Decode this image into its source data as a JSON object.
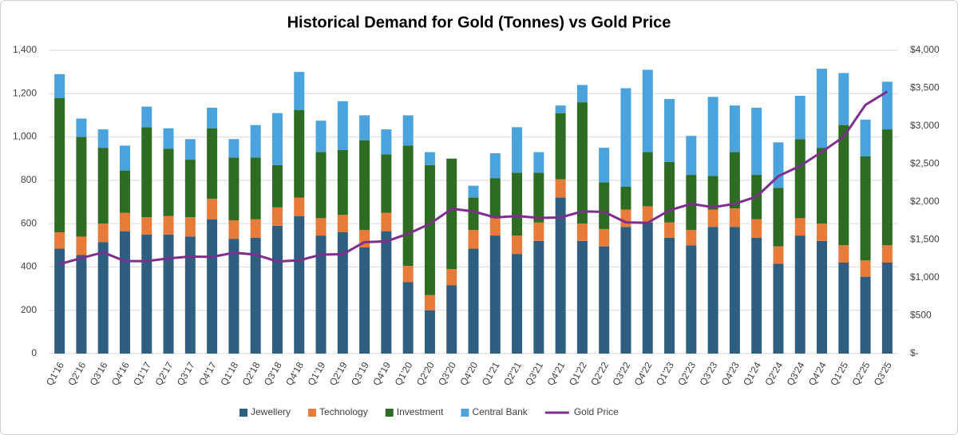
{
  "chart_data": {
    "type": "bar",
    "stacked": true,
    "title": "Historical Demand for Gold (Tonnes) vs Gold Price",
    "categories": [
      "Q1'16",
      "Q2'16",
      "Q3'16",
      "Q4'16",
      "Q1'17",
      "Q2'17",
      "Q3'17",
      "Q4'17",
      "Q1'18",
      "Q2'18",
      "Q3'18",
      "Q4'18",
      "Q1'19",
      "Q2'19",
      "Q3'19",
      "Q4'19",
      "Q1'20",
      "Q2'20",
      "Q3'20",
      "Q4'20",
      "Q1'21",
      "Q2'21",
      "Q3'21",
      "Q4'21",
      "Q1'22",
      "Q2'22",
      "Q3'22",
      "Q4'22",
      "Q1'23",
      "Q2'23",
      "Q3'23",
      "Q4'23",
      "Q1'24",
      "Q2'24",
      "Q3'24",
      "Q4'24",
      "Q1'25",
      "Q2'25",
      "Q3'25"
    ],
    "series": [
      {
        "name": "Jewellery",
        "color": "#2f5f80",
        "values": [
          485,
          455,
          515,
          565,
          550,
          550,
          540,
          620,
          530,
          535,
          590,
          635,
          545,
          560,
          490,
          565,
          330,
          200,
          315,
          485,
          545,
          460,
          520,
          720,
          520,
          495,
          585,
          605,
          535,
          500,
          585,
          585,
          535,
          415,
          545,
          520,
          420,
          355,
          420
        ]
      },
      {
        "name": "Technology",
        "color": "#e97b3a",
        "values": [
          75,
          85,
          85,
          85,
          80,
          85,
          90,
          95,
          85,
          85,
          85,
          85,
          80,
          80,
          80,
          85,
          75,
          70,
          75,
          85,
          80,
          85,
          85,
          85,
          80,
          80,
          80,
          75,
          70,
          70,
          80,
          85,
          85,
          80,
          80,
          80,
          80,
          75,
          80
        ]
      },
      {
        "name": "Investment",
        "color": "#2e6b23",
        "values": [
          620,
          460,
          350,
          195,
          415,
          310,
          265,
          325,
          290,
          285,
          195,
          405,
          305,
          300,
          415,
          270,
          555,
          600,
          510,
          150,
          185,
          290,
          230,
          305,
          560,
          215,
          105,
          250,
          280,
          255,
          155,
          260,
          205,
          270,
          365,
          350,
          555,
          480,
          535
        ]
      },
      {
        "name": "Central Bank",
        "color": "#4aa3dc",
        "values": [
          110,
          85,
          85,
          115,
          95,
          95,
          95,
          95,
          85,
          150,
          240,
          175,
          145,
          225,
          115,
          115,
          140,
          60,
          0,
          55,
          115,
          210,
          95,
          35,
          80,
          160,
          455,
          380,
          290,
          180,
          365,
          215,
          310,
          210,
          200,
          365,
          240,
          170,
          220
        ]
      },
      {
        "name": "Gold Price",
        "color": "#7e2f8e",
        "type": "line",
        "axis": "y2",
        "values": [
          1180,
          1260,
          1335,
          1220,
          1220,
          1255,
          1280,
          1275,
          1330,
          1305,
          1215,
          1230,
          1305,
          1310,
          1470,
          1480,
          1580,
          1710,
          1910,
          1875,
          1795,
          1815,
          1790,
          1795,
          1875,
          1870,
          1730,
          1725,
          1890,
          1975,
          1930,
          1975,
          2070,
          2340,
          2475,
          2660,
          2860,
          3280,
          3455
        ]
      }
    ],
    "ylim": [
      0,
      1400
    ],
    "yticks": [
      0,
      200,
      400,
      600,
      800,
      {
        "value": 1000,
        "label": "1,000"
      },
      {
        "value": 1200,
        "label": "1,200"
      },
      {
        "value": 1400,
        "label": "1,400"
      }
    ],
    "y2lim": [
      0,
      4000
    ],
    "y2ticks": [
      {
        "value": 0,
        "label": "$-"
      },
      {
        "value": 500,
        "label": "$500"
      },
      {
        "value": 1000,
        "label": "$1,000"
      },
      {
        "value": 1500,
        "label": "$1,500"
      },
      {
        "value": 2000,
        "label": "$2,000"
      },
      {
        "value": 2500,
        "label": "$2,500"
      },
      {
        "value": 3000,
        "label": "$3,000"
      },
      {
        "value": 3500,
        "label": "$3,500"
      },
      {
        "value": 4000,
        "label": "$4,000"
      }
    ],
    "grid": true,
    "legend": "bottom"
  }
}
